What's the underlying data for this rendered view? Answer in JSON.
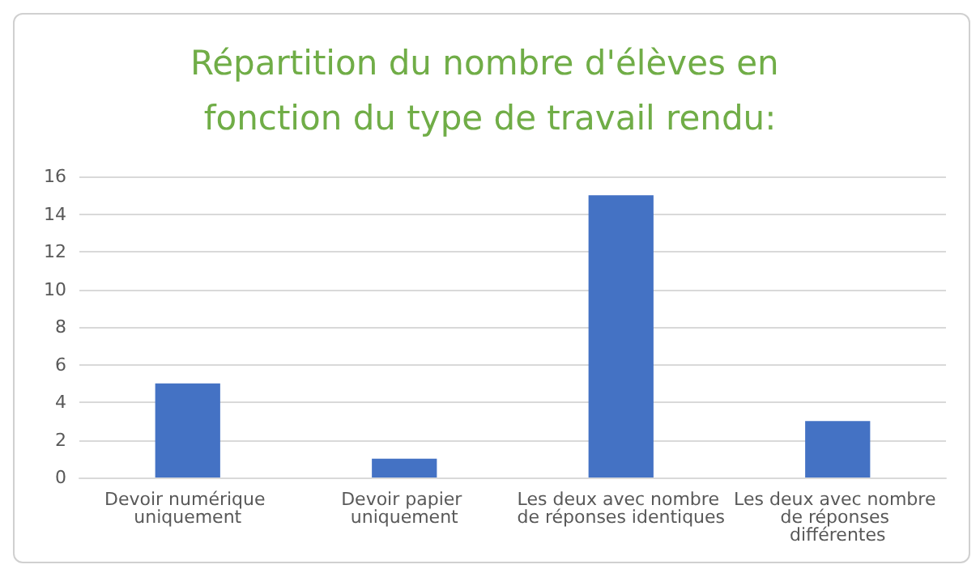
{
  "chart_data": {
    "type": "bar",
    "title": "Répartition du nombre d'élèves en fonction du type de travail rendu:",
    "categories": [
      "Devoir numérique uniquement",
      "Devoir papier uniquement",
      "Les deux avec nombre de réponses identiques",
      "Les deux avec nombre de réponses différentes"
    ],
    "values": [
      5,
      1,
      15,
      3
    ],
    "color": "#4472c4",
    "ylim": [
      0,
      16
    ],
    "yticks": [
      0,
      2,
      4,
      6,
      8,
      10,
      12,
      14,
      16
    ],
    "grid": "y"
  }
}
